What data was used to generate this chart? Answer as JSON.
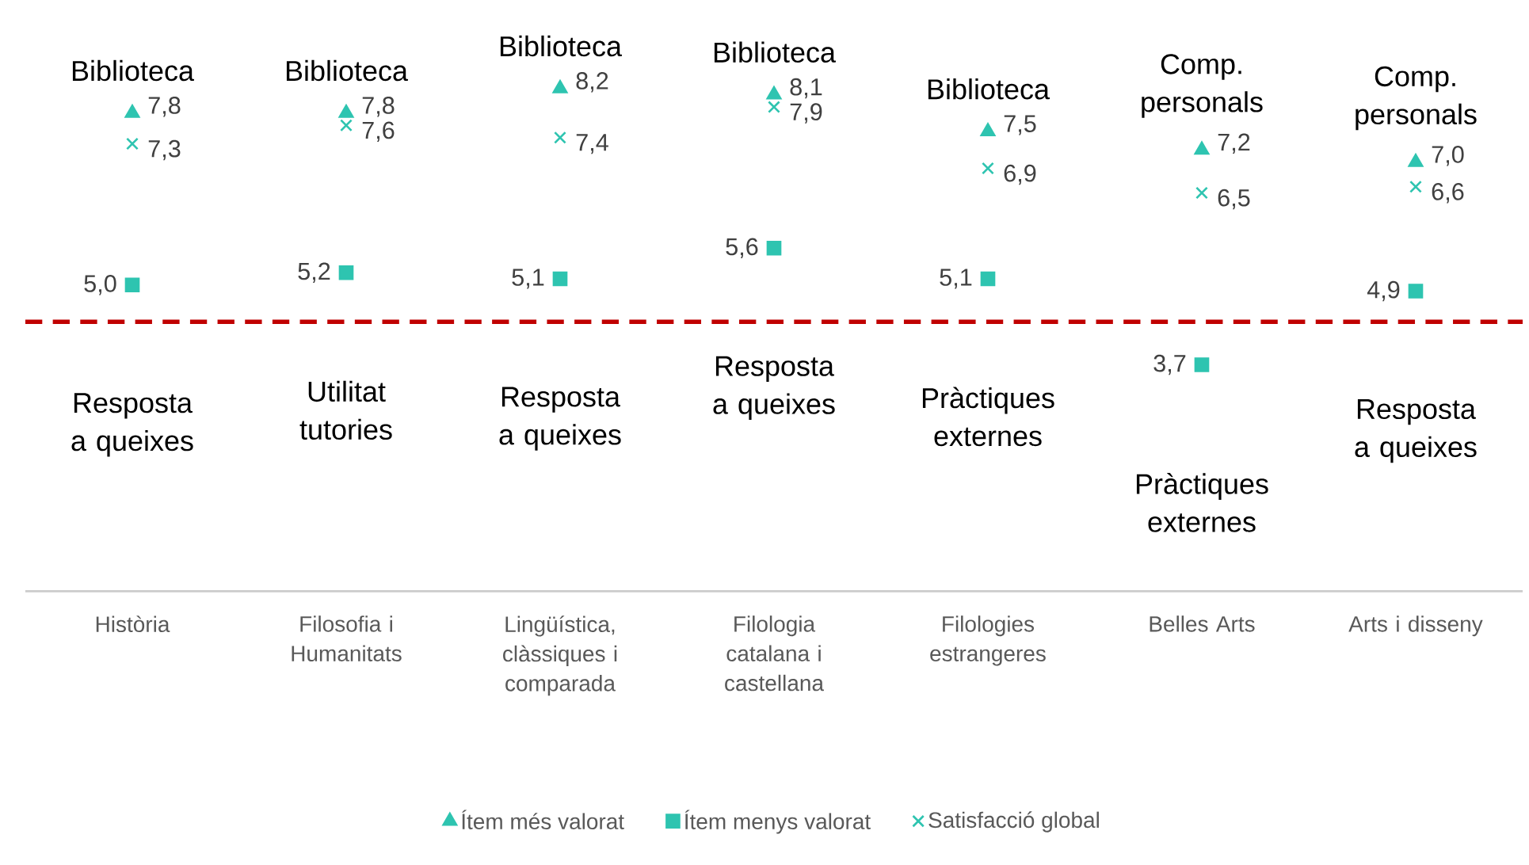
{
  "chart_data": {
    "type": "scatter",
    "categories": [
      "Història",
      "Filosofia i Humanitats",
      "Lingüística, clàssiques i comparada",
      "Filologia catalana i castellana",
      "Filologies estrangeres",
      "Belles Arts",
      "Arts i disseny"
    ],
    "series": [
      {
        "name": "Ítem més valorat",
        "color": "#2ec4b0",
        "marker": "triangle",
        "values": [
          7.8,
          7.8,
          8.2,
          8.1,
          7.5,
          7.2,
          7.0
        ],
        "value_labels": [
          "7,8",
          "7,8",
          "8,2",
          "8,1",
          "7,5",
          "7,2",
          "7,0"
        ]
      },
      {
        "name": "Ítem menys valorat",
        "color": "#2ec4b0",
        "marker": "square",
        "values": [
          5.0,
          5.2,
          5.1,
          5.6,
          5.1,
          3.7,
          4.9
        ],
        "value_labels": [
          "5,0",
          "5,2",
          "5,1",
          "5,6",
          "5,1",
          "3,7",
          "4,9"
        ]
      },
      {
        "name": "Satisfacció global",
        "color": "#2ec4b0",
        "marker": "cross",
        "values": [
          7.3,
          7.6,
          7.4,
          7.9,
          6.9,
          6.5,
          6.6
        ],
        "value_labels": [
          "7,3",
          "7,6",
          "7,4",
          "7,9",
          "6,9",
          "6,5",
          "6,6"
        ]
      }
    ],
    "ref_lines": [
      {
        "axis": "y",
        "value": 4.4,
        "color": "#c00000",
        "line_style": "dashed"
      }
    ],
    "annotations": [
      "Biblioteca",
      "Biblioteca",
      "Biblioteca",
      "Biblioteca",
      "Biblioteca",
      "Comp. personals",
      "Comp. personals",
      "Resposta a queixes",
      "Utilitat tutories",
      "Resposta a queixes",
      "Resposta a queixes",
      "Pràctiques externes",
      "Pràctiques externes",
      "Resposta a queixes"
    ],
    "legend": "bottom"
  }
}
